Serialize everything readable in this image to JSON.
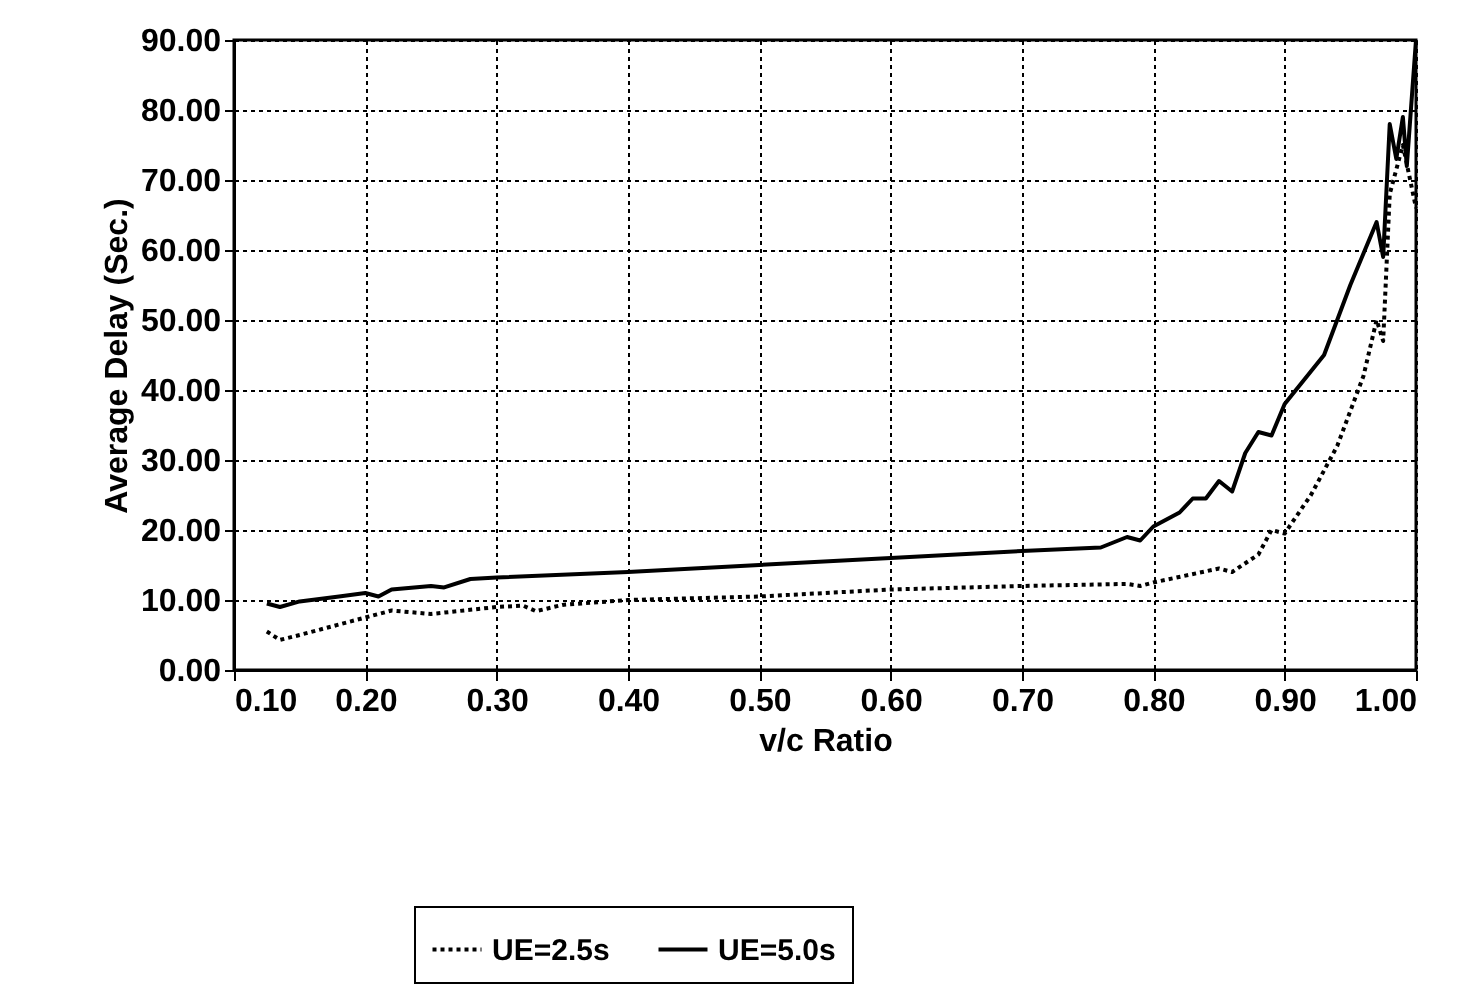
{
  "chart_data": {
    "type": "line",
    "xlabel": "v/c Ratio",
    "ylabel": "Average Delay (Sec.)",
    "xlim": [
      0.1,
      1.0
    ],
    "ylim": [
      0,
      90
    ],
    "xticks": [
      {
        "value": 0.1,
        "label": "0.10"
      },
      {
        "value": 0.2,
        "label": "0.20"
      },
      {
        "value": 0.3,
        "label": "0.30"
      },
      {
        "value": 0.4,
        "label": "0.40"
      },
      {
        "value": 0.5,
        "label": "0.50"
      },
      {
        "value": 0.6,
        "label": "0.60"
      },
      {
        "value": 0.7,
        "label": "0.70"
      },
      {
        "value": 0.8,
        "label": "0.80"
      },
      {
        "value": 0.9,
        "label": "0.90"
      },
      {
        "value": 1.0,
        "label": "1.00"
      }
    ],
    "yticks": [
      {
        "value": 0,
        "label": "0.00"
      },
      {
        "value": 10,
        "label": "10.00"
      },
      {
        "value": 20,
        "label": "20.00"
      },
      {
        "value": 30,
        "label": "30.00"
      },
      {
        "value": 40,
        "label": "40.00"
      },
      {
        "value": 50,
        "label": "50.00"
      },
      {
        "value": 60,
        "label": "60.00"
      },
      {
        "value": 70,
        "label": "70.00"
      },
      {
        "value": 80,
        "label": "80.00"
      },
      {
        "value": 90,
        "label": "90.00"
      }
    ],
    "grid": true,
    "legend": "bottom",
    "marker": "none",
    "series": [
      {
        "name": "UE=2.5s",
        "color": "#000000",
        "line_style": "dotted",
        "x": [
          0.125,
          0.135,
          0.15,
          0.2,
          0.22,
          0.25,
          0.3,
          0.32,
          0.33,
          0.35,
          0.4,
          0.5,
          0.6,
          0.7,
          0.78,
          0.79,
          0.8,
          0.85,
          0.86,
          0.88,
          0.89,
          0.9,
          0.92,
          0.94,
          0.96,
          0.97,
          0.975,
          0.98,
          0.99,
          1.0
        ],
        "values": [
          5.5,
          4.3,
          5,
          7.5,
          8.5,
          8,
          9,
          9.2,
          8.4,
          9.3,
          10,
          10.5,
          11.5,
          12,
          12.3,
          12,
          12.5,
          14.5,
          14,
          16.5,
          20,
          19.5,
          25,
          32,
          42,
          50,
          47,
          68,
          75,
          66
        ]
      },
      {
        "name": "UE=5.0s",
        "color": "#000000",
        "line_style": "solid",
        "x": [
          0.125,
          0.135,
          0.15,
          0.18,
          0.2,
          0.21,
          0.22,
          0.25,
          0.26,
          0.28,
          0.3,
          0.4,
          0.5,
          0.6,
          0.7,
          0.76,
          0.78,
          0.79,
          0.8,
          0.82,
          0.83,
          0.84,
          0.85,
          0.86,
          0.87,
          0.88,
          0.89,
          0.9,
          0.93,
          0.95,
          0.97,
          0.975,
          0.98,
          0.985,
          0.99,
          0.993,
          1.0
        ],
        "values": [
          9.5,
          9,
          9.8,
          10.5,
          11,
          10.5,
          11.5,
          12,
          11.8,
          13,
          13.2,
          14,
          15,
          16,
          17,
          17.5,
          19,
          18.5,
          20.5,
          22.5,
          24.5,
          24.5,
          27,
          25.5,
          31,
          34,
          33.5,
          38,
          45,
          55,
          64,
          59,
          78,
          73,
          79,
          72,
          90
        ]
      }
    ]
  }
}
